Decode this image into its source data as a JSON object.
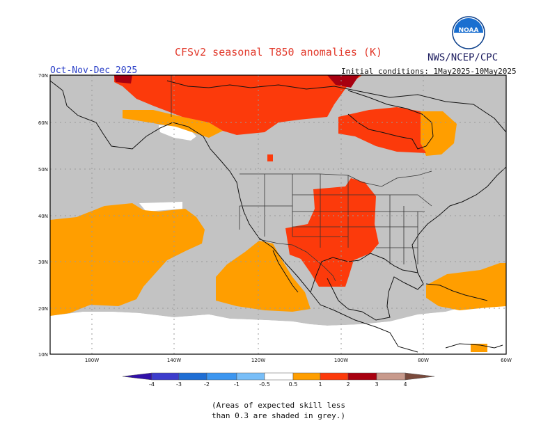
{
  "header": {
    "title": "CFSv2 seasonal T850 anomalies (K)",
    "agency": "NWS/NCEP/CPC",
    "period": "Oct-Nov-Dec 2025",
    "initial_conditions": "Initial conditions:  1May2025-10May2025",
    "logo_text": "NOAA"
  },
  "map": {
    "lat_labels": [
      "70N",
      "60N",
      "50N",
      "40N",
      "30N",
      "20N",
      "10N"
    ],
    "lon_labels": [
      "180W",
      "140W",
      "120W",
      "100W",
      "80W",
      "60W"
    ],
    "colors": {
      "grey": "#c3c3c3",
      "orange": "#ff9e00",
      "red": "#fc3a0b",
      "darkred": "#a80010",
      "white": "#ffffff",
      "coast": "#111111"
    }
  },
  "legend": {
    "labels": [
      "-4",
      "-3",
      "-2",
      "-1",
      "-0.5",
      "0.5",
      "1",
      "2",
      "3",
      "4"
    ],
    "colors": [
      "#3010a8",
      "#3c3ccc",
      "#1f6ed4",
      "#3c96f0",
      "#78bef8",
      "#ffffff",
      "#ff9e00",
      "#fc3a0b",
      "#a80010",
      "#c89a8c",
      "#7a4a3c"
    ]
  },
  "footnote": {
    "line1": "(Areas of expected skill less",
    "line2": "than 0.3 are shaded in grey.)"
  }
}
